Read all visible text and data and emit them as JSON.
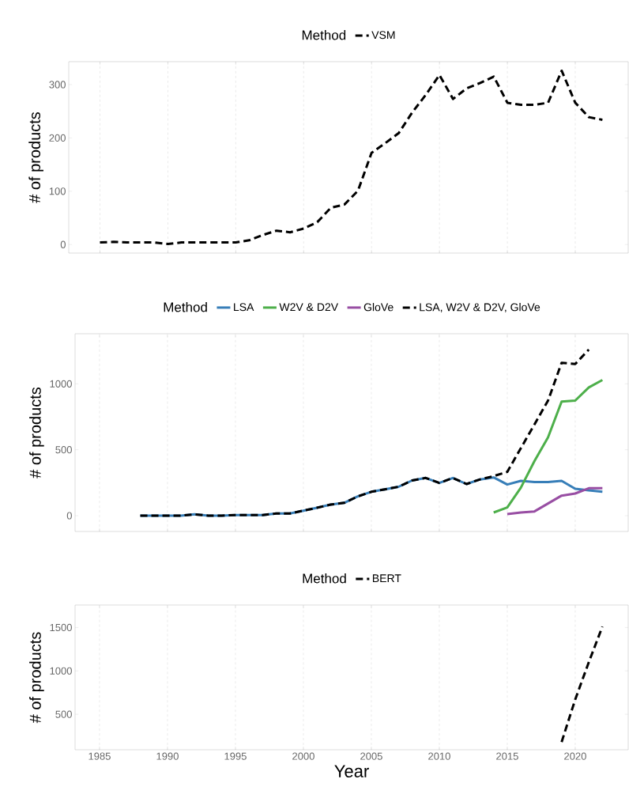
{
  "chart_data": [
    {
      "type": "line",
      "ylabel": "# of products",
      "legend_title": "Method",
      "legend": "top",
      "grid": "x",
      "tick_labels": "y",
      "xlim": [
        1982.7,
        2023.9
      ],
      "xticks": [
        1985,
        1990,
        1995,
        2000,
        2005,
        2010,
        2015,
        2020
      ],
      "ylim": [
        -16,
        343
      ],
      "yticks": [
        0,
        100,
        200,
        300
      ],
      "series": [
        {
          "name": "VSM",
          "color": "#000000",
          "line_style": "dashed",
          "x": [
            1985,
            1986,
            1987,
            1988,
            1989,
            1990,
            1991,
            1992,
            1993,
            1994,
            1995,
            1996,
            1997,
            1998,
            1999,
            2000,
            2001,
            2002,
            2003,
            2004,
            2005,
            2006,
            2007,
            2008,
            2009,
            2010,
            2011,
            2012,
            2013,
            2014,
            2015,
            2016,
            2017,
            2018,
            2019,
            2020,
            2021,
            2022
          ],
          "values": [
            4,
            5,
            4,
            4,
            4,
            1,
            4,
            4,
            4,
            4,
            4,
            8,
            18,
            26,
            23,
            30,
            42,
            69,
            75,
            101,
            172,
            190,
            209,
            248,
            281,
            318,
            273,
            293,
            303,
            315,
            266,
            262,
            262,
            266,
            326,
            266,
            239,
            234
          ]
        }
      ]
    },
    {
      "type": "line",
      "ylabel": "# of products",
      "legend_title": "Method",
      "legend": "top",
      "grid": "x",
      "tick_labels": "y",
      "xlim": [
        1983.2,
        2023.9
      ],
      "xticks": [
        1985,
        1990,
        1995,
        2000,
        2005,
        2010,
        2015,
        2020
      ],
      "ylim": [
        -120,
        1380
      ],
      "yticks": [
        0,
        500,
        1000
      ],
      "series": [
        {
          "name": "LSA",
          "color": "#377eb8",
          "line_style": "solid",
          "x": [
            1988,
            1989,
            1990,
            1991,
            1992,
            1993,
            1994,
            1995,
            1996,
            1997,
            1998,
            1999,
            2000,
            2001,
            2002,
            2003,
            2004,
            2005,
            2006,
            2007,
            2008,
            2009,
            2010,
            2011,
            2012,
            2013,
            2014,
            2015,
            2016,
            2017,
            2018,
            2019,
            2020,
            2021,
            2022
          ],
          "values": [
            0,
            0,
            0,
            0,
            10,
            0,
            0,
            5,
            5,
            5,
            16,
            16,
            38,
            60,
            84,
            97,
            146,
            181,
            200,
            219,
            267,
            286,
            248,
            286,
            240,
            275,
            290,
            236,
            264,
            255,
            255,
            264,
            204,
            192,
            182
          ]
        },
        {
          "name": "W2V & D2V",
          "color": "#4daf4a",
          "line_style": "solid",
          "x": [
            2014,
            2015,
            2016,
            2017,
            2018,
            2019,
            2020,
            2021,
            2022
          ],
          "values": [
            24,
            62,
            212,
            414,
            594,
            865,
            873,
            973,
            1029
          ]
        },
        {
          "name": "GloVe",
          "color": "#984ea3",
          "line_style": "solid",
          "x": [
            2015,
            2016,
            2017,
            2018,
            2019,
            2020,
            2021,
            2022
          ],
          "values": [
            12,
            24,
            32,
            92,
            152,
            168,
            208,
            208
          ]
        },
        {
          "name": "LSA, W2V & D2V, GloVe",
          "color": "#000000",
          "line_style": "dashed",
          "x": [
            1988,
            1989,
            1990,
            1991,
            1992,
            1993,
            1994,
            1995,
            1996,
            1997,
            1998,
            1999,
            2000,
            2001,
            2002,
            2003,
            2004,
            2005,
            2006,
            2007,
            2008,
            2009,
            2010,
            2011,
            2012,
            2013,
            2014,
            2015,
            2016,
            2017,
            2018,
            2019,
            2020,
            2021
          ],
          "values": [
            0,
            0,
            0,
            0,
            10,
            0,
            0,
            5,
            5,
            5,
            16,
            16,
            38,
            60,
            84,
            97,
            146,
            181,
            200,
            219,
            267,
            286,
            248,
            286,
            240,
            275,
            300,
            332,
            512,
            692,
            873,
            1160,
            1150,
            1260
          ]
        }
      ]
    },
    {
      "type": "line",
      "xlabel": "Year",
      "ylabel": "# of products",
      "legend_title": "Method",
      "legend": "top",
      "grid": "x",
      "xlim": [
        1983.2,
        2023.9
      ],
      "xticks": [
        1985,
        1990,
        1995,
        2000,
        2005,
        2010,
        2015,
        2020
      ],
      "ylim": [
        91,
        1759
      ],
      "yticks": [
        500,
        1000,
        1500
      ],
      "series": [
        {
          "name": "BERT",
          "color": "#000000",
          "line_style": "dashed",
          "x": [
            2019,
            2020,
            2021,
            2022
          ],
          "values": [
            180,
            670,
            1100,
            1510
          ]
        }
      ]
    }
  ]
}
